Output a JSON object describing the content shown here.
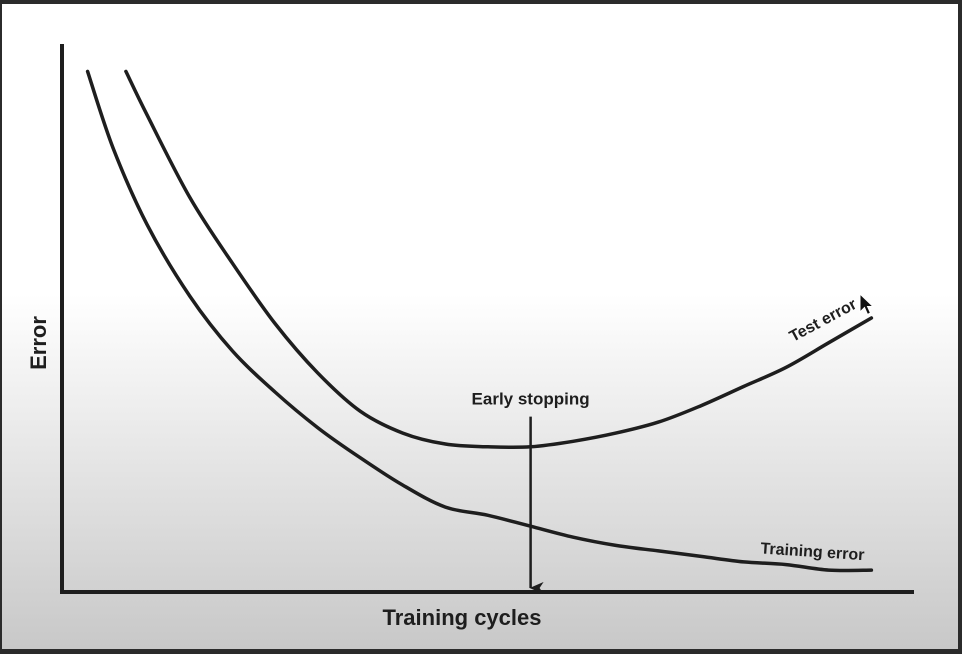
{
  "chart_data": {
    "type": "line",
    "title": "",
    "xlabel": "Training cycles",
    "ylabel": "Error",
    "grid": false,
    "legend": "none",
    "x_ticks": "none",
    "y_ticks": "none",
    "xlim": [
      0,
      1
    ],
    "ylim": [
      0,
      1
    ],
    "series": [
      {
        "name": "Training error",
        "x": [
          0.03,
          0.06,
          0.1,
          0.15,
          0.2,
          0.25,
          0.3,
          0.35,
          0.4,
          0.45,
          0.5,
          0.55,
          0.6,
          0.65,
          0.7,
          0.75,
          0.8,
          0.85,
          0.9,
          0.95
        ],
        "y": [
          0.95,
          0.81,
          0.67,
          0.54,
          0.44,
          0.365,
          0.3,
          0.245,
          0.195,
          0.155,
          0.14,
          0.12,
          0.1,
          0.085,
          0.075,
          0.065,
          0.055,
          0.05,
          0.04,
          0.04
        ]
      },
      {
        "name": "Test error",
        "x": [
          0.075,
          0.1,
          0.15,
          0.2,
          0.25,
          0.3,
          0.35,
          0.4,
          0.45,
          0.5,
          0.55,
          0.6,
          0.65,
          0.7,
          0.75,
          0.8,
          0.85,
          0.9,
          0.95
        ],
        "y": [
          0.95,
          0.87,
          0.72,
          0.6,
          0.49,
          0.4,
          0.33,
          0.29,
          0.27,
          0.265,
          0.265,
          0.275,
          0.29,
          0.31,
          0.34,
          0.375,
          0.41,
          0.455,
          0.5
        ]
      }
    ],
    "annotations": [
      {
        "text": "Early stopping",
        "x": 0.55,
        "arrow_from_y": 0.32,
        "arrow_to_y": 0.0
      }
    ]
  },
  "colors": {
    "stroke": "#1e1e1e",
    "background_top": "#ffffff",
    "background_bottom": "#c8c8c8",
    "frame": "#2b2b2b"
  },
  "icons": {
    "cursor": "mouse-pointer-icon"
  }
}
